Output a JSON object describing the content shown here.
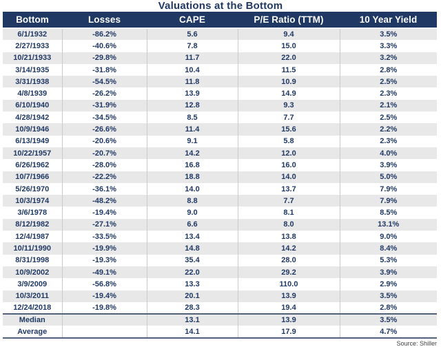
{
  "title": "Valuations at the Bottom",
  "source_note": "Source: Shiller",
  "colors": {
    "header_bg": "#1F3864",
    "header_text": "#FFFFFF",
    "body_text": "#1F3864",
    "stripe": "#E8E8E8",
    "divider": "#C9C9C9",
    "separator": "#51627B",
    "source_text": "#3F3F3F",
    "page_bg": "#FFFFFF"
  },
  "chart_data": {
    "type": "table",
    "title": "Valuations at the Bottom",
    "columns": [
      "Bottom",
      "Losses",
      "CAPE",
      "P/E Ratio (TTM)",
      "10 Year Yield"
    ],
    "rows": [
      [
        "6/1/1932",
        "-86.2%",
        "5.6",
        "9.4",
        "3.5%"
      ],
      [
        "2/27/1933",
        "-40.6%",
        "7.8",
        "15.0",
        "3.3%"
      ],
      [
        "10/21/1933",
        "-29.8%",
        "11.7",
        "22.0",
        "3.2%"
      ],
      [
        "3/14/1935",
        "-31.8%",
        "10.4",
        "11.5",
        "2.8%"
      ],
      [
        "3/31/1938",
        "-54.5%",
        "11.8",
        "10.9",
        "2.5%"
      ],
      [
        "4/8/1939",
        "-26.2%",
        "13.9",
        "14.9",
        "2.3%"
      ],
      [
        "6/10/1940",
        "-31.9%",
        "12.8",
        "9.3",
        "2.1%"
      ],
      [
        "4/28/1942",
        "-34.5%",
        "8.5",
        "7.7",
        "2.5%"
      ],
      [
        "10/9/1946",
        "-26.6%",
        "11.4",
        "15.6",
        "2.2%"
      ],
      [
        "6/13/1949",
        "-20.6%",
        "9.1",
        "5.8",
        "2.3%"
      ],
      [
        "10/22/1957",
        "-20.7%",
        "14.2",
        "12.0",
        "4.0%"
      ],
      [
        "6/26/1962",
        "-28.0%",
        "16.8",
        "16.0",
        "3.9%"
      ],
      [
        "10/7/1966",
        "-22.2%",
        "18.8",
        "14.0",
        "5.0%"
      ],
      [
        "5/26/1970",
        "-36.1%",
        "14.0",
        "13.7",
        "7.9%"
      ],
      [
        "10/3/1974",
        "-48.2%",
        "8.8",
        "7.7",
        "7.9%"
      ],
      [
        "3/6/1978",
        "-19.4%",
        "9.0",
        "8.1",
        "8.5%"
      ],
      [
        "8/12/1982",
        "-27.1%",
        "6.6",
        "8.0",
        "13.1%"
      ],
      [
        "12/4/1987",
        "-33.5%",
        "13.4",
        "13.8",
        "9.0%"
      ],
      [
        "10/11/1990",
        "-19.9%",
        "14.8",
        "14.2",
        "8.4%"
      ],
      [
        "8/31/1998",
        "-19.3%",
        "35.4",
        "28.0",
        "5.3%"
      ],
      [
        "10/9/2002",
        "-49.1%",
        "22.0",
        "29.2",
        "3.9%"
      ],
      [
        "3/9/2009",
        "-56.8%",
        "13.3",
        "110.0",
        "2.9%"
      ],
      [
        "10/3/2011",
        "-19.4%",
        "20.1",
        "13.9",
        "3.5%"
      ],
      [
        "12/24/2018",
        "-19.8%",
        "28.3",
        "19.4",
        "2.8%"
      ]
    ],
    "summary_rows": [
      [
        "Median",
        "",
        "13.1",
        "13.9",
        "3.5%"
      ],
      [
        "Average",
        "",
        "14.1",
        "17.9",
        "4.7%"
      ]
    ],
    "source": "Source: Shiller",
    "layout_hints": {
      "header_style": "dark-navy band, white bold text",
      "row_striping": "alternating light gray / white, starting gray",
      "summary_separator": "dark slate rule above Median and below Average"
    }
  }
}
